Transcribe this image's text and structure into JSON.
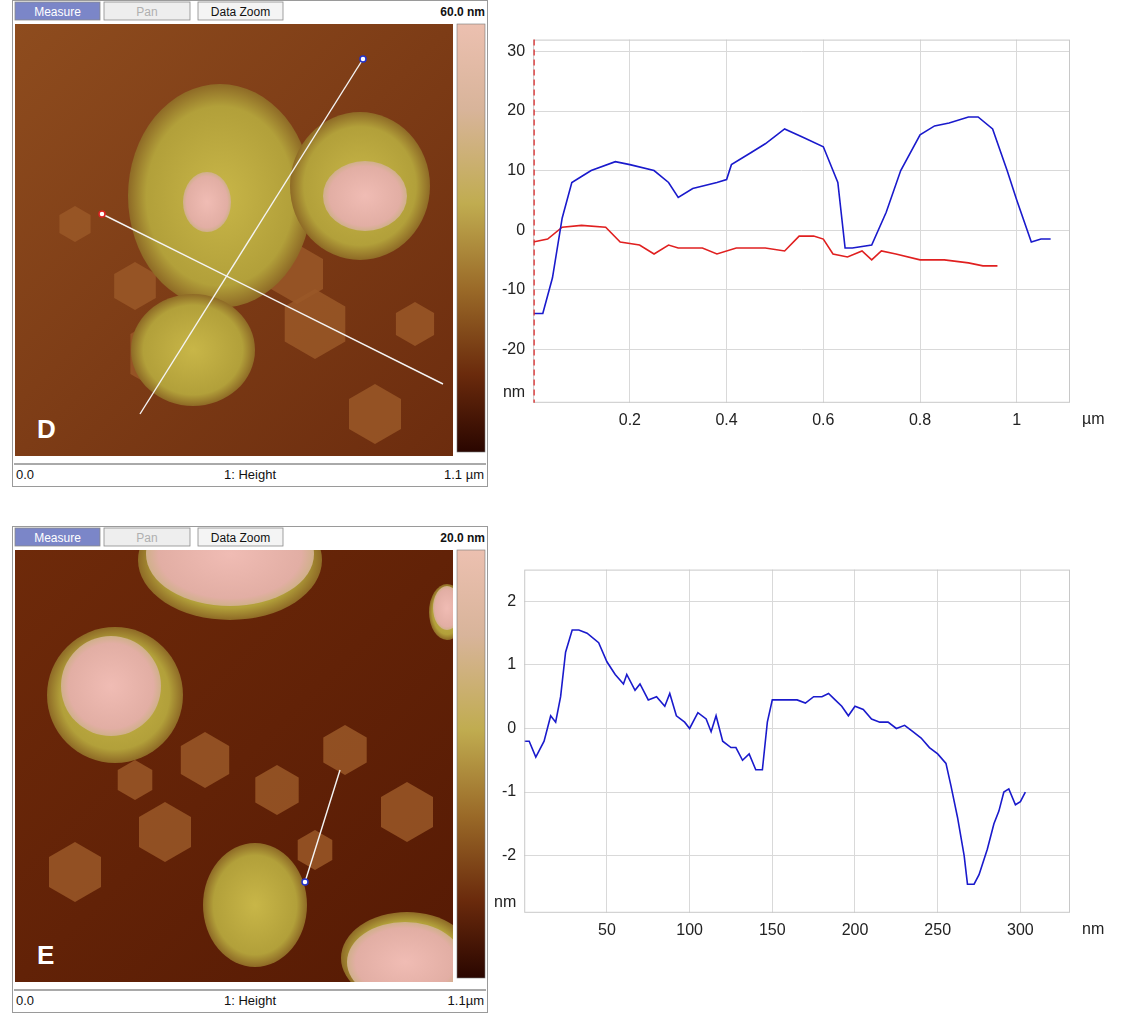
{
  "panels": [
    {
      "letter": "D",
      "toolbar": [
        "Measure",
        "Pan",
        "Data Zoom"
      ],
      "scale_max": "60.0 nm",
      "footer": [
        "0.0",
        "1: Height",
        "1.1 µm"
      ]
    },
    {
      "letter": "E",
      "toolbar": [
        "Measure",
        "Pan",
        "Data Zoom"
      ],
      "scale_max": "20.0 nm",
      "footer": [
        "0.0",
        "1: Height",
        "1.1µm"
      ]
    }
  ],
  "chart_data": [
    {
      "type": "line",
      "x_label": "µm",
      "y_label": "nm",
      "xlim": [
        0,
        1.11
      ],
      "xticks": [
        0.2,
        0.4,
        0.6,
        0.8,
        1
      ],
      "ylim": [
        -29,
        32
      ],
      "yticks": [
        -20,
        -10,
        0,
        10,
        20,
        30
      ],
      "grid": true,
      "series": [
        {
          "color": "#1a1acc",
          "x": [
            0,
            0.02,
            0.04,
            0.06,
            0.08,
            0.1,
            0.12,
            0.17,
            0.2,
            0.25,
            0.28,
            0.3,
            0.33,
            0.38,
            0.4,
            0.41,
            0.45,
            0.48,
            0.52,
            0.56,
            0.6,
            0.63,
            0.645,
            0.66,
            0.7,
            0.73,
            0.76,
            0.8,
            0.83,
            0.86,
            0.9,
            0.92,
            0.95,
            0.98,
            1.0,
            1.03,
            1.05,
            1.07
          ],
          "values": [
            -14,
            -14,
            -8,
            2,
            8,
            9,
            10,
            11.5,
            11,
            10,
            8,
            5.5,
            7,
            8,
            8.5,
            11,
            13,
            14.5,
            17,
            15.5,
            14,
            8,
            -3,
            -3,
            -2.5,
            3,
            10,
            16,
            17.5,
            18,
            19,
            19,
            17,
            10,
            5,
            -2,
            -1.5,
            -1.5
          ]
        },
        {
          "color": "#e02020",
          "x": [
            0,
            0.03,
            0.06,
            0.1,
            0.15,
            0.18,
            0.22,
            0.25,
            0.28,
            0.3,
            0.35,
            0.38,
            0.42,
            0.48,
            0.52,
            0.55,
            0.58,
            0.6,
            0.62,
            0.65,
            0.68,
            0.7,
            0.72,
            0.75,
            0.8,
            0.85,
            0.9,
            0.93,
            0.96
          ],
          "values": [
            -2,
            -1.5,
            0.5,
            0.8,
            0.5,
            -2,
            -2.5,
            -4,
            -2.5,
            -3,
            -3,
            -4,
            -3,
            -3,
            -3.5,
            -1,
            -1,
            -1.5,
            -4,
            -4.5,
            -3.5,
            -5,
            -3.5,
            -4,
            -5,
            -5,
            -5.5,
            -6,
            -6
          ]
        }
      ]
    },
    {
      "type": "line",
      "x_label": "nm",
      "y_label": "nm",
      "xlim": [
        0,
        330
      ],
      "xticks": [
        50,
        100,
        150,
        200,
        250,
        300
      ],
      "ylim": [
        -2.9,
        2.5
      ],
      "yticks": [
        -2,
        -1,
        0,
        1,
        2
      ],
      "grid": true,
      "series": [
        {
          "color": "#1a1acc",
          "x": [
            0,
            3,
            7,
            12,
            16,
            19,
            22,
            25,
            29,
            33,
            38,
            45,
            50,
            55,
            60,
            62,
            67,
            70,
            75,
            80,
            85,
            88,
            92,
            97,
            100,
            105,
            110,
            113,
            116,
            120,
            125,
            128,
            132,
            136,
            140,
            144,
            147,
            150,
            155,
            160,
            165,
            170,
            175,
            180,
            184,
            188,
            192,
            196,
            200,
            205,
            210,
            215,
            220,
            225,
            230,
            235,
            240,
            245,
            250,
            255,
            258,
            262,
            266,
            268,
            272,
            275,
            280,
            284,
            287,
            290,
            293,
            297,
            300,
            303
          ],
          "values": [
            -0.2,
            -0.2,
            -0.45,
            -0.2,
            0.2,
            0.1,
            0.5,
            1.2,
            1.55,
            1.55,
            1.5,
            1.35,
            1.05,
            0.85,
            0.7,
            0.85,
            0.6,
            0.7,
            0.45,
            0.5,
            0.35,
            0.55,
            0.2,
            0.1,
            0.0,
            0.25,
            0.15,
            -0.05,
            0.2,
            -0.2,
            -0.3,
            -0.3,
            -0.5,
            -0.4,
            -0.65,
            -0.65,
            0.1,
            0.45,
            0.45,
            0.45,
            0.45,
            0.4,
            0.5,
            0.5,
            0.55,
            0.45,
            0.35,
            0.2,
            0.35,
            0.3,
            0.15,
            0.1,
            0.1,
            0.0,
            0.05,
            -0.05,
            -0.15,
            -0.3,
            -0.4,
            -0.55,
            -0.9,
            -1.4,
            -2.0,
            -2.45,
            -2.45,
            -2.3,
            -1.9,
            -1.5,
            -1.3,
            -1.0,
            -0.95,
            -1.2,
            -1.15,
            -1.0
          ]
        }
      ]
    }
  ]
}
